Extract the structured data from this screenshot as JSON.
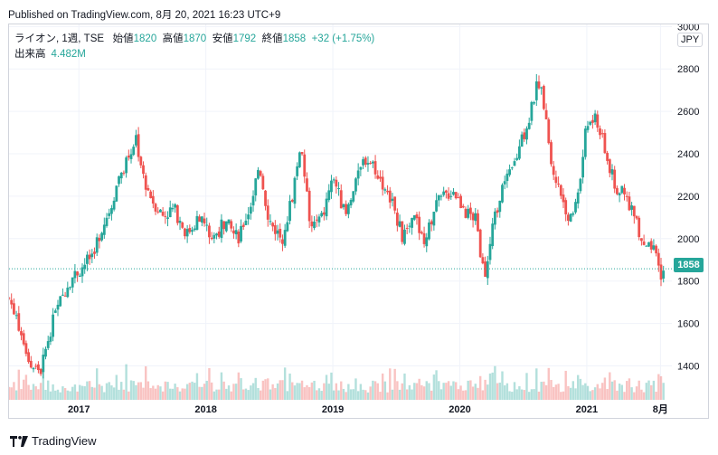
{
  "header": {
    "published": "Published on TradingView.com, 8月 20, 2021 16:23 UTC+9"
  },
  "legend": {
    "symbol": "ライオン, 1週, TSE",
    "open_label": "始値",
    "open": "1820",
    "high_label": "高値",
    "high": "1870",
    "low_label": "安値",
    "low": "1792",
    "close_label": "終値",
    "close": "1858",
    "change": "+32 (+1.75%)",
    "volume_label": "出来高",
    "volume": "4.482M"
  },
  "currency": "JPY",
  "last_price": "1858",
  "footer": {
    "brand": "TradingView"
  },
  "colors": {
    "up": "#26a69a",
    "down": "#ef5350",
    "grid": "#f0f3fa",
    "dotted": "#26a69a"
  },
  "chart_data": {
    "type": "candlestick",
    "title": "ライオン, 1週, TSE",
    "ylim": [
      1240,
      3010
    ],
    "y_ticks": [
      1400,
      1600,
      1800,
      2000,
      2200,
      2400,
      2600,
      2800,
      3000
    ],
    "x_tick_labels": [
      "2017",
      "2018",
      "2019",
      "2020",
      "2021",
      "8月"
    ],
    "x_tick_positions": [
      2017.0,
      2018.0,
      2019.0,
      2020.0,
      2021.0,
      2021.58
    ],
    "x_range": [
      2016.45,
      2021.67
    ],
    "last_close": 1858,
    "close_series": [
      [
        2016.45,
        1720
      ],
      [
        2016.55,
        1560
      ],
      [
        2016.62,
        1400
      ],
      [
        2016.7,
        1380
      ],
      [
        2016.78,
        1580
      ],
      [
        2016.85,
        1700
      ],
      [
        2016.92,
        1800
      ],
      [
        2017.0,
        1850
      ],
      [
        2017.1,
        1920
      ],
      [
        2017.18,
        2050
      ],
      [
        2017.25,
        2150
      ],
      [
        2017.32,
        2300
      ],
      [
        2017.4,
        2400
      ],
      [
        2017.45,
        2480
      ],
      [
        2017.5,
        2300
      ],
      [
        2017.58,
        2180
      ],
      [
        2017.66,
        2110
      ],
      [
        2017.75,
        2140
      ],
      [
        2017.85,
        2020
      ],
      [
        2017.95,
        2110
      ],
      [
        2018.05,
        2000
      ],
      [
        2018.15,
        2080
      ],
      [
        2018.25,
        2000
      ],
      [
        2018.35,
        2150
      ],
      [
        2018.42,
        2350
      ],
      [
        2018.5,
        2080
      ],
      [
        2018.6,
        2000
      ],
      [
        2018.68,
        2200
      ],
      [
        2018.75,
        2460
      ],
      [
        2018.82,
        2050
      ],
      [
        2018.92,
        2100
      ],
      [
        2019.0,
        2300
      ],
      [
        2019.1,
        2100
      ],
      [
        2019.18,
        2250
      ],
      [
        2019.25,
        2380
      ],
      [
        2019.32,
        2350
      ],
      [
        2019.4,
        2250
      ],
      [
        2019.48,
        2150
      ],
      [
        2019.55,
        2000
      ],
      [
        2019.65,
        2100
      ],
      [
        2019.72,
        1970
      ],
      [
        2019.8,
        2150
      ],
      [
        2019.88,
        2200
      ],
      [
        2019.95,
        2230
      ],
      [
        2020.05,
        2120
      ],
      [
        2020.12,
        2100
      ],
      [
        2020.2,
        1800
      ],
      [
        2020.25,
        2030
      ],
      [
        2020.33,
        2240
      ],
      [
        2020.4,
        2300
      ],
      [
        2020.48,
        2450
      ],
      [
        2020.55,
        2580
      ],
      [
        2020.62,
        2750
      ],
      [
        2020.68,
        2600
      ],
      [
        2020.72,
        2350
      ],
      [
        2020.8,
        2200
      ],
      [
        2020.88,
        2080
      ],
      [
        2020.95,
        2300
      ],
      [
        2021.0,
        2540
      ],
      [
        2021.08,
        2560
      ],
      [
        2021.15,
        2400
      ],
      [
        2021.22,
        2250
      ],
      [
        2021.3,
        2200
      ],
      [
        2021.38,
        2100
      ],
      [
        2021.45,
        1950
      ],
      [
        2021.52,
        1950
      ],
      [
        2021.58,
        1830
      ],
      [
        2021.62,
        1858
      ]
    ]
  }
}
